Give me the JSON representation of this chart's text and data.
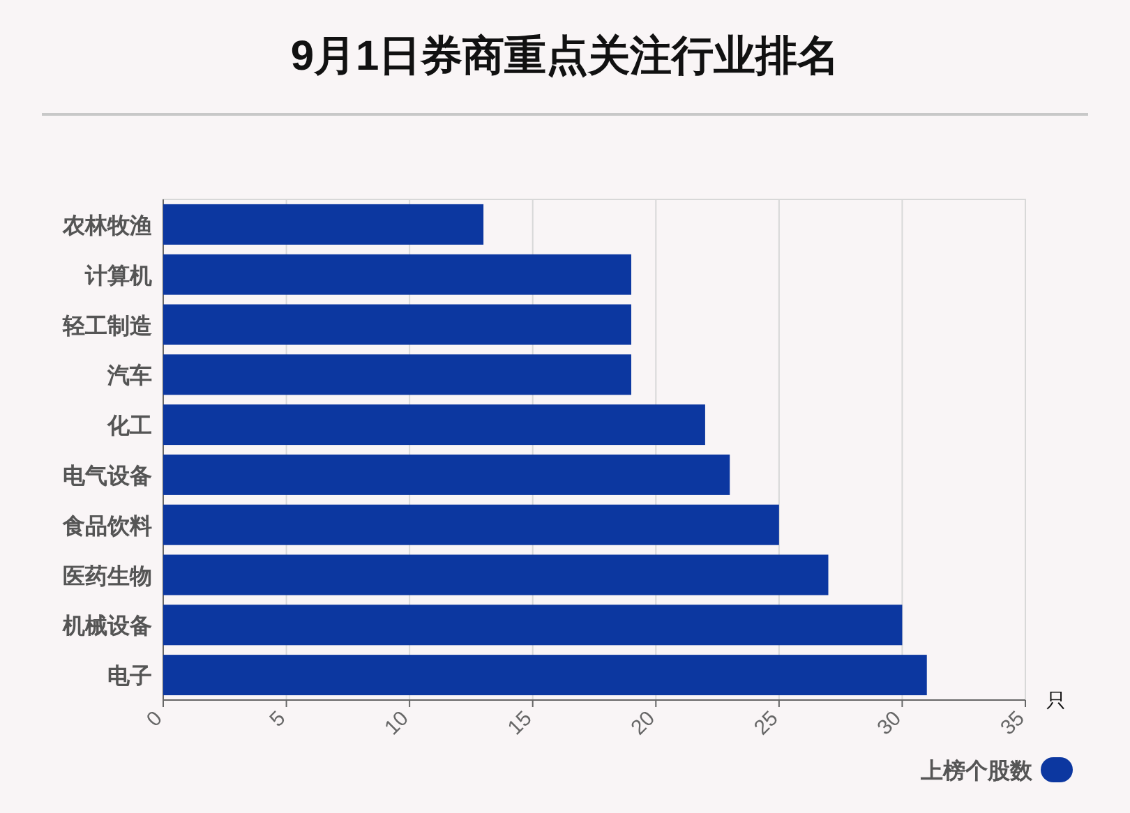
{
  "chart_data": {
    "type": "bar",
    "orientation": "horizontal",
    "title": "9月1日券商重点关注行业排名",
    "categories": [
      "农林牧渔",
      "计算机",
      "轻工制造",
      "汽车",
      "化工",
      "电气设备",
      "食品饮料",
      "医药生物",
      "机械设备",
      "电子"
    ],
    "series": [
      {
        "name": "上榜个股数",
        "color": "#0c37a0",
        "values": [
          13,
          19,
          19,
          19,
          22,
          23,
          25,
          27,
          30,
          31
        ]
      }
    ],
    "xlim": [
      0,
      35
    ],
    "xticks": [
      0,
      5,
      10,
      15,
      20,
      25,
      30,
      35
    ],
    "xlabel": "只",
    "grid": "x",
    "legend": "bottom right"
  }
}
